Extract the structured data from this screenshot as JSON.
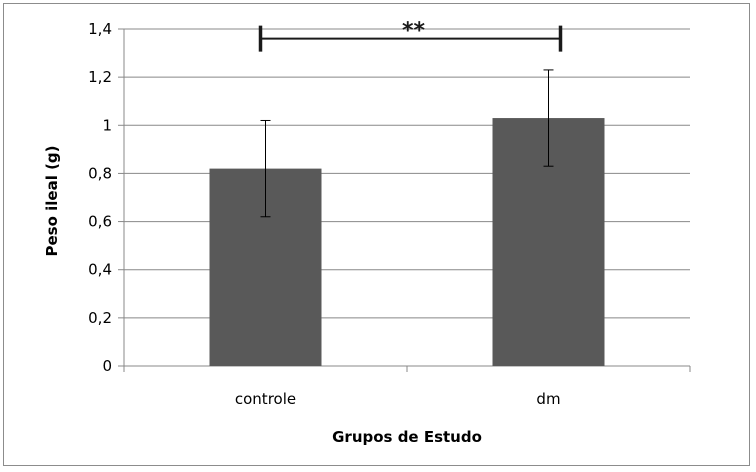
{
  "chart_data": {
    "type": "bar",
    "title": "",
    "categories": [
      "controle",
      "dm"
    ],
    "values": [
      0.82,
      1.03
    ],
    "error": [
      0.2,
      0.2
    ],
    "xlabel": "Grupos de Estudo",
    "ylabel": "Peso ileal (g)",
    "ylim": [
      0,
      1.4
    ],
    "yticks": [
      0,
      0.2,
      0.4,
      0.6,
      0.8,
      1.0,
      1.2,
      1.4
    ],
    "ytick_labels": [
      "0",
      "0,2",
      "0,4",
      "0,6",
      "0,8",
      "1",
      "1,2",
      "1,4"
    ],
    "grid": true,
    "legend": "none",
    "bar_color": "#595959",
    "grid_color": "#888888",
    "significance": {
      "label": "**",
      "between": [
        "controle",
        "dm"
      ],
      "y": 1.36
    }
  }
}
